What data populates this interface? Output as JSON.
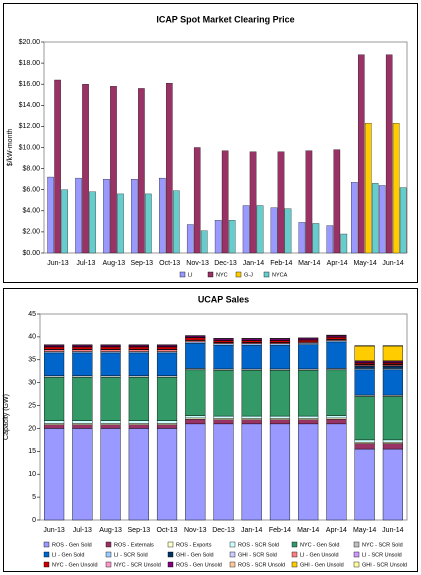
{
  "chart_data": [
    {
      "type": "bar",
      "title": "ICAP Spot Market Clearing Price",
      "y_label": "$/kW-month",
      "categories": [
        "Jun-13",
        "Jul-13",
        "Aug-13",
        "Sep-13",
        "Oct-13",
        "Nov-13",
        "Dec-13",
        "Jan-14",
        "Feb-14",
        "Mar-14",
        "Apr-14",
        "May-14",
        "Jun-14"
      ],
      "series": [
        {
          "name": "LI",
          "color": "#9999ff",
          "values": [
            7.2,
            7.1,
            7.0,
            7.0,
            7.1,
            2.7,
            3.1,
            4.5,
            4.3,
            2.9,
            2.6,
            6.7,
            6.4
          ]
        },
        {
          "name": "NYC",
          "color": "#993366",
          "values": [
            16.4,
            16.0,
            15.8,
            15.6,
            16.1,
            10.0,
            9.7,
            9.6,
            9.6,
            9.7,
            9.8,
            18.8,
            18.8
          ]
        },
        {
          "name": "G-J",
          "color": "#ffcc00",
          "values": [
            null,
            null,
            null,
            null,
            null,
            null,
            null,
            null,
            null,
            null,
            null,
            12.3,
            12.3
          ]
        },
        {
          "name": "NYCA",
          "color": "#66cccc",
          "values": [
            6.0,
            5.8,
            5.6,
            5.6,
            5.9,
            2.1,
            3.1,
            4.5,
            4.2,
            2.8,
            1.8,
            6.6,
            6.2
          ]
        }
      ],
      "ylim": [
        0,
        20
      ],
      "yticks": [
        {
          "value": 0,
          "label": "$0.00"
        },
        {
          "value": 2,
          "label": "$2.00"
        },
        {
          "value": 4,
          "label": "$4.00"
        },
        {
          "value": 6,
          "label": "$6.00"
        },
        {
          "value": 8,
          "label": "$8.00"
        },
        {
          "value": 10,
          "label": "$10.00"
        },
        {
          "value": 12,
          "label": "$12.00"
        },
        {
          "value": 14,
          "label": "$14.00"
        },
        {
          "value": 16,
          "label": "$16.00"
        },
        {
          "value": 18,
          "label": "$18.00"
        },
        {
          "value": 20,
          "label": "$20.00"
        }
      ],
      "grid": false,
      "legend": "bottom"
    },
    {
      "type": "stacked_bar",
      "title": "UCAP Sales",
      "y_label": "Capacity (GW)",
      "categories": [
        "Jun-13",
        "Jul-13",
        "Aug-13",
        "Sep-13",
        "Oct-13",
        "Nov-13",
        "Dec-13",
        "Jan-14",
        "Feb-14",
        "Mar-14",
        "Apr-14",
        "May-14",
        "Jun-14"
      ],
      "series": [
        {
          "name": "ROS - Gen Sold",
          "color": "#9999ff",
          "values": [
            20,
            20,
            20,
            20,
            20,
            21,
            21,
            21,
            21,
            21,
            21,
            15.5,
            15.5
          ]
        },
        {
          "name": "ROS - Externals",
          "color": "#993366",
          "values": [
            0.8,
            0.8,
            0.8,
            0.8,
            0.8,
            1.0,
            0.9,
            0.9,
            0.9,
            0.9,
            1.0,
            1.2,
            1.2
          ]
        },
        {
          "name": "ROS - Exports",
          "color": "#ffffcc",
          "values": [
            0.3,
            0.3,
            0.3,
            0.3,
            0.3,
            0.3,
            0.3,
            0.3,
            0.3,
            0.3,
            0.3,
            0.3,
            0.3
          ]
        },
        {
          "name": "ROS - SCR Sold",
          "color": "#ccffff",
          "values": [
            0.6,
            0.6,
            0.6,
            0.6,
            0.6,
            0.5,
            0.5,
            0.5,
            0.5,
            0.5,
            0.5,
            0.5,
            0.5
          ]
        },
        {
          "name": "NYC - Gen Sold",
          "color": "#339966",
          "values": [
            9.5,
            9.5,
            9.5,
            9.5,
            9.5,
            10,
            10,
            10,
            10,
            10,
            10,
            9.5,
            9.5
          ]
        },
        {
          "name": "NYC - SCR Sold",
          "color": "#c0c0c0",
          "values": [
            0.3,
            0.3,
            0.3,
            0.3,
            0.3,
            0.3,
            0.3,
            0.3,
            0.3,
            0.3,
            0.3,
            0.3,
            0.3
          ]
        },
        {
          "name": "LI - Gen Sold",
          "color": "#0066cc",
          "values": [
            5,
            5,
            5,
            5,
            5,
            5.5,
            5.2,
            5.2,
            5.2,
            5.3,
            5.8,
            5.5,
            5.5
          ]
        },
        {
          "name": "LI - SCR Sold",
          "color": "#99ccff",
          "values": [
            0.3,
            0.3,
            0.3,
            0.3,
            0.3,
            0.3,
            0.3,
            0.3,
            0.3,
            0.3,
            0.3,
            0.3,
            0.3
          ]
        },
        {
          "name": "GHI - Gen Sold",
          "color": "#003366",
          "values": [
            null,
            null,
            null,
            null,
            null,
            null,
            null,
            null,
            null,
            null,
            null,
            0.5,
            0.5
          ]
        },
        {
          "name": "GHI - SCR Sold",
          "color": "#ccccff",
          "values": [
            null,
            null,
            null,
            null,
            null,
            null,
            null,
            null,
            null,
            null,
            null,
            0.1,
            0.1
          ]
        },
        {
          "name": "LI - Gen Unsold",
          "color": "#ff8080",
          "values": [
            0.4,
            0.4,
            0.4,
            0.4,
            0.4,
            0.3,
            0.2,
            0.2,
            0.2,
            0.2,
            0.2,
            0.2,
            0.2
          ]
        },
        {
          "name": "LI - SCR Unsold",
          "color": "#cc99ff",
          "values": [
            0.1,
            0.1,
            0.1,
            0.1,
            0.1,
            0.1,
            0.1,
            0.1,
            0.1,
            0.1,
            0.1,
            0.1,
            0.1
          ]
        },
        {
          "name": "NYC - Gen Unsold",
          "color": "#cc0000",
          "values": [
            0.5,
            0.5,
            0.5,
            0.5,
            0.5,
            0.5,
            0.4,
            0.4,
            0.4,
            0.4,
            0.4,
            0.3,
            0.3
          ]
        },
        {
          "name": "NYC - SCR Unsold",
          "color": "#ff99cc",
          "values": [
            0.1,
            0.1,
            0.1,
            0.1,
            0.1,
            0.1,
            0.1,
            0.1,
            0.1,
            0.1,
            0.1,
            0.1,
            0.1
          ]
        },
        {
          "name": "ROS - Gen Unsold",
          "color": "#800080",
          "values": [
            0.3,
            0.3,
            0.3,
            0.3,
            0.3,
            0.3,
            0.3,
            0.3,
            0.3,
            0.3,
            0.3,
            0.3,
            0.3
          ]
        },
        {
          "name": "ROS - SCR Unsold",
          "color": "#ffcc99",
          "values": [
            0.1,
            0.1,
            0.1,
            0.1,
            0.1,
            0.1,
            0.1,
            0.1,
            0.1,
            0.1,
            0.1,
            0.1,
            0.1
          ]
        },
        {
          "name": "GHI - Gen Unsold",
          "color": "#ffcc00",
          "values": [
            null,
            null,
            null,
            null,
            null,
            null,
            null,
            null,
            null,
            null,
            null,
            3.2,
            3.2
          ]
        },
        {
          "name": "GHI - SCR Unsold",
          "color": "#ffff99",
          "values": [
            null,
            null,
            null,
            null,
            null,
            null,
            null,
            null,
            null,
            null,
            null,
            0.1,
            0.1
          ]
        }
      ],
      "ylim": [
        0,
        45
      ],
      "yticks": [
        0,
        5,
        10,
        15,
        20,
        25,
        30,
        35,
        40,
        45
      ],
      "grid": false,
      "legend": "bottom"
    }
  ]
}
